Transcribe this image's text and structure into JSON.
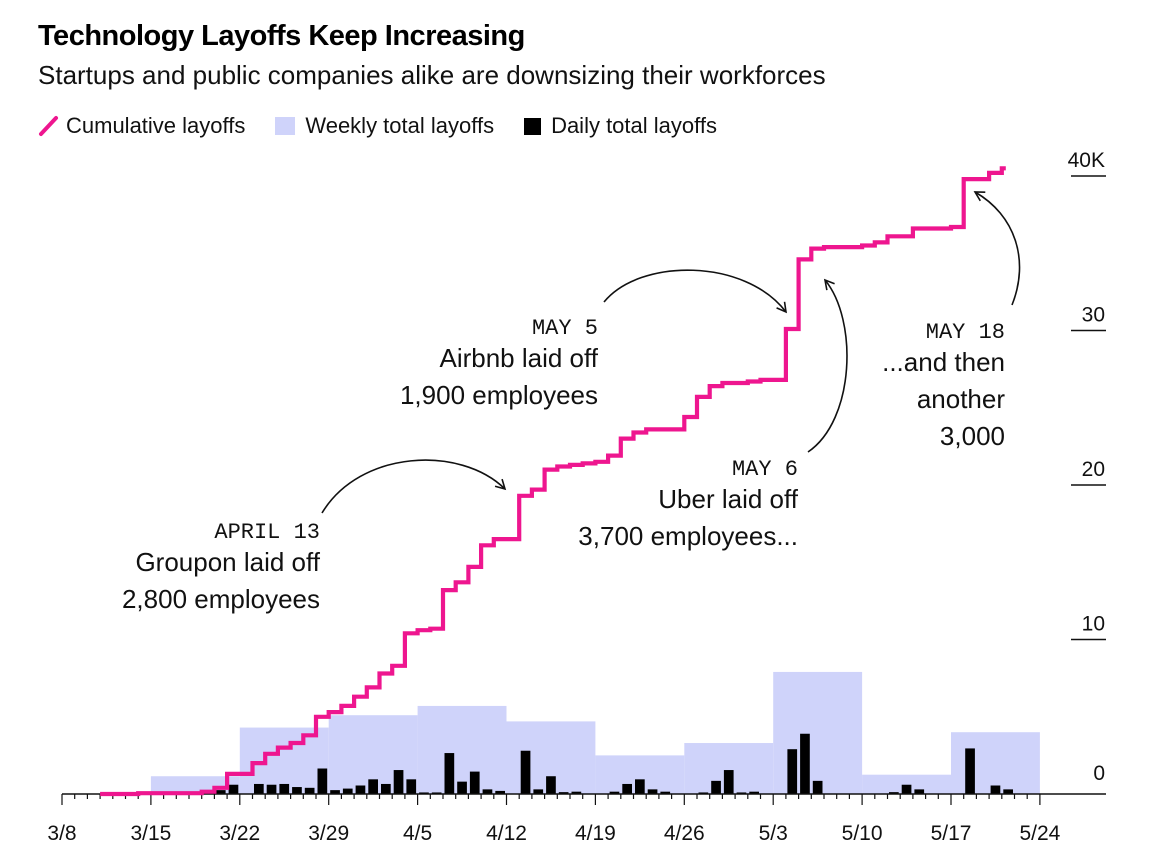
{
  "chart_data": {
    "type": "line",
    "title": "Technology Layoffs Keep Increasing",
    "subtitle": "Startups and public companies alike are downsizing their workforces",
    "legend": {
      "placement": "top-left",
      "items": [
        {
          "label": "Cumulative layoffs",
          "color": "#ee168f",
          "kind": "line"
        },
        {
          "label": "Weekly total layoffs",
          "color": "#cfd3fa",
          "kind": "area"
        },
        {
          "label": "Daily total layoffs",
          "color": "#000000",
          "kind": "bar"
        }
      ]
    },
    "x_axis": {
      "ticks": [
        "3/8",
        "3/15",
        "3/22",
        "3/29",
        "4/5",
        "4/12",
        "4/19",
        "4/26",
        "5/3",
        "5/10",
        "5/17",
        "5/24"
      ],
      "range_days": [
        0,
        77
      ]
    },
    "y_axis": {
      "side": "right",
      "ticks": [
        "0",
        "10",
        "20",
        "30",
        "40K"
      ],
      "tick_values": [
        0,
        10000,
        20000,
        30000,
        40000
      ],
      "ylim": [
        0,
        41500
      ],
      "grid": false
    },
    "series": [
      {
        "name": "Cumulative layoffs",
        "type": "step",
        "color": "#ee168f",
        "points": [
          [
            "3/11",
            0
          ],
          [
            "3/14",
            50
          ],
          [
            "3/19",
            150
          ],
          [
            "3/20",
            400
          ],
          [
            "3/21",
            1300
          ],
          [
            "3/23",
            2000
          ],
          [
            "3/24",
            2600
          ],
          [
            "3/25",
            3000
          ],
          [
            "3/26",
            3300
          ],
          [
            "3/27",
            3800
          ],
          [
            "3/28",
            5000
          ],
          [
            "3/29",
            5300
          ],
          [
            "3/30",
            5700
          ],
          [
            "3/31",
            6300
          ],
          [
            "4/1",
            6900
          ],
          [
            "4/2",
            7800
          ],
          [
            "4/3",
            8300
          ],
          [
            "4/4",
            10400
          ],
          [
            "4/5",
            10600
          ],
          [
            "4/6",
            10700
          ],
          [
            "4/7",
            13200
          ],
          [
            "4/8",
            13700
          ],
          [
            "4/9",
            14700
          ],
          [
            "4/10",
            16100
          ],
          [
            "4/11",
            16500
          ],
          [
            "4/13",
            19300
          ],
          [
            "4/14",
            19700
          ],
          [
            "4/15",
            21000
          ],
          [
            "4/16",
            21200
          ],
          [
            "4/17",
            21300
          ],
          [
            "4/18",
            21400
          ],
          [
            "4/19",
            21500
          ],
          [
            "4/20",
            21900
          ],
          [
            "4/21",
            23000
          ],
          [
            "4/22",
            23400
          ],
          [
            "4/23",
            23600
          ],
          [
            "4/26",
            24400
          ],
          [
            "4/27",
            25700
          ],
          [
            "4/28",
            26400
          ],
          [
            "4/29",
            26600
          ],
          [
            "5/1",
            26700
          ],
          [
            "5/2",
            26800
          ],
          [
            "5/4",
            30100
          ],
          [
            "5/5",
            34600
          ],
          [
            "5/6",
            35300
          ],
          [
            "5/7",
            35400
          ],
          [
            "5/10",
            35500
          ],
          [
            "5/11",
            35700
          ],
          [
            "5/12",
            36100
          ],
          [
            "5/14",
            36600
          ],
          [
            "5/17",
            36700
          ],
          [
            "5/18",
            39800
          ],
          [
            "5/20",
            40200
          ],
          [
            "5/21",
            40500
          ]
        ]
      },
      {
        "name": "Weekly total layoffs",
        "type": "area",
        "color": "#cfd3fa",
        "weeks": [
          {
            "start": "3/15",
            "value": 1150
          },
          {
            "start": "3/22",
            "value": 4300
          },
          {
            "start": "3/29",
            "value": 5100
          },
          {
            "start": "4/5",
            "value": 5700
          },
          {
            "start": "4/12",
            "value": 4700
          },
          {
            "start": "4/19",
            "value": 2500
          },
          {
            "start": "4/26",
            "value": 3300
          },
          {
            "start": "5/3",
            "value": 7900
          },
          {
            "start": "5/10",
            "value": 1250
          },
          {
            "start": "5/17",
            "value": 4000
          }
        ]
      },
      {
        "name": "Daily total layoffs",
        "type": "bar",
        "color": "#000000",
        "days": [
          [
            "3/14",
            80
          ],
          [
            "3/20",
            250
          ],
          [
            "3/21",
            600
          ],
          [
            "3/23",
            650
          ],
          [
            "3/24",
            600
          ],
          [
            "3/25",
            650
          ],
          [
            "3/26",
            450
          ],
          [
            "3/27",
            400
          ],
          [
            "3/28",
            1650
          ],
          [
            "3/29",
            250
          ],
          [
            "3/30",
            350
          ],
          [
            "3/31",
            550
          ],
          [
            "4/1",
            950
          ],
          [
            "4/2",
            650
          ],
          [
            "4/3",
            1550
          ],
          [
            "4/4",
            950
          ],
          [
            "4/5",
            100
          ],
          [
            "4/6",
            100
          ],
          [
            "4/7",
            2650
          ],
          [
            "4/8",
            800
          ],
          [
            "4/9",
            1450
          ],
          [
            "4/10",
            300
          ],
          [
            "4/11",
            200
          ],
          [
            "4/13",
            2800
          ],
          [
            "4/14",
            300
          ],
          [
            "4/15",
            1150
          ],
          [
            "4/16",
            120
          ],
          [
            "4/17",
            150
          ],
          [
            "4/20",
            150
          ],
          [
            "4/21",
            650
          ],
          [
            "4/22",
            950
          ],
          [
            "4/23",
            300
          ],
          [
            "4/24",
            150
          ],
          [
            "4/27",
            100
          ],
          [
            "4/28",
            850
          ],
          [
            "4/29",
            1550
          ],
          [
            "4/30",
            100
          ],
          [
            "5/1",
            150
          ],
          [
            "5/4",
            2900
          ],
          [
            "5/5",
            3900
          ],
          [
            "5/6",
            850
          ],
          [
            "5/12",
            120
          ],
          [
            "5/13",
            600
          ],
          [
            "5/14",
            300
          ],
          [
            "5/18",
            2950
          ],
          [
            "5/20",
            550
          ],
          [
            "5/21",
            300
          ]
        ]
      }
    ],
    "annotations": [
      {
        "id": "groupon",
        "date": "APRIL 13",
        "lines": [
          "Groupon laid off",
          "2,800 employees"
        ],
        "align": "end",
        "point": [
          "4/13",
          19300
        ]
      },
      {
        "id": "airbnb",
        "date": "MAY 5",
        "lines": [
          "Airbnb laid off",
          "1,900 employees"
        ],
        "align": "end",
        "point": [
          "5/5",
          30300
        ]
      },
      {
        "id": "uber",
        "date": "MAY 6",
        "lines": [
          "Uber laid off",
          "3,700 employees..."
        ],
        "align": "end",
        "point": [
          "5/6",
          33200
        ]
      },
      {
        "id": "another",
        "date": "MAY 18",
        "lines": [
          "...and then",
          "another",
          "3,000"
        ],
        "align": "end",
        "point": [
          "5/18",
          39700
        ]
      }
    ]
  }
}
